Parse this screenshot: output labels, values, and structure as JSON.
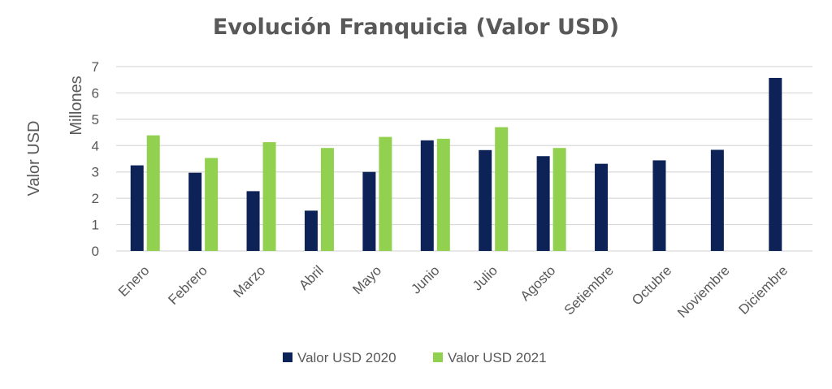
{
  "chart_data": {
    "type": "bar",
    "title": "Evolución Franquicia (Valor USD)",
    "ylabel": "Valor USD",
    "yunit": "Millones",
    "ylim": [
      0,
      7
    ],
    "yticks": [
      0,
      1,
      2,
      3,
      4,
      5,
      6,
      7
    ],
    "grid": true,
    "legend_position": "bottom",
    "categories": [
      "Enero",
      "Febrero",
      "Marzo",
      "Abril",
      "Mayo",
      "Junio",
      "Julio",
      "Agosto",
      "Setiembre",
      "Octubre",
      "Noviembre",
      "Diciembre"
    ],
    "series": [
      {
        "name": "Valor USD 2020",
        "color": "#0d2357",
        "values": [
          3.25,
          2.97,
          2.27,
          1.53,
          3.0,
          4.2,
          3.83,
          3.6,
          3.31,
          3.44,
          3.84,
          6.57
        ]
      },
      {
        "name": "Valor USD 2021",
        "color": "#92d050",
        "values": [
          4.39,
          3.53,
          4.13,
          3.91,
          4.33,
          4.26,
          4.7,
          3.91,
          null,
          null,
          null,
          null
        ]
      }
    ]
  }
}
